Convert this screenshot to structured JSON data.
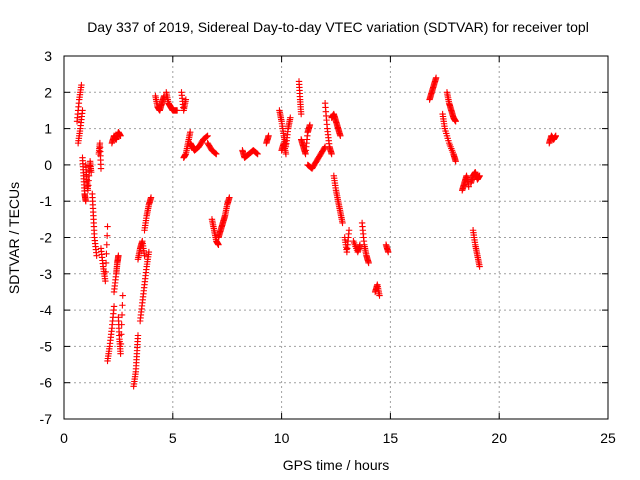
{
  "chart_data": {
    "type": "scatter",
    "title": "Day 337 of 2019, Sidereal Day-to-day VTEC variation (SDTVAR) for receiver topl",
    "xlabel": "GPS time / hours",
    "ylabel": "SDTVAR / TECUs",
    "xlim": [
      0,
      25
    ],
    "ylim": [
      -7,
      3
    ],
    "xticks": [
      0,
      5,
      10,
      15,
      20,
      25
    ],
    "yticks": [
      -7,
      -6,
      -5,
      -4,
      -3,
      -2,
      -1,
      0,
      1,
      2,
      3
    ],
    "xtick_labels": [
      "0",
      "5",
      "10",
      "15",
      "20",
      "25"
    ],
    "ytick_labels": [
      "-7",
      "-6",
      "-5",
      "-4",
      "-3",
      "-2",
      "-1",
      "0",
      "1",
      "2",
      "3"
    ],
    "grid": true,
    "marker": "+",
    "color": "#ff0000",
    "series": [
      {
        "name": "SDTVAR",
        "segments": [
          {
            "x": [
              0.6,
              0.7,
              0.8
            ],
            "y": [
              1.2,
              1.8,
              2.2
            ]
          },
          {
            "x": [
              0.65,
              0.75,
              0.85
            ],
            "y": [
              0.6,
              1.0,
              1.5
            ]
          },
          {
            "x": [
              0.85,
              0.9,
              0.95,
              1.0
            ],
            "y": [
              0.2,
              -0.3,
              -0.8,
              -1.0
            ]
          },
          {
            "x": [
              1.0,
              1.05,
              1.1,
              1.2,
              1.25
            ],
            "y": [
              0.0,
              -0.4,
              -0.7,
              0.1,
              -0.2
            ]
          },
          {
            "x": [
              1.3,
              1.35,
              1.4,
              1.5
            ],
            "y": [
              -0.8,
              -1.4,
              -2.0,
              -2.5
            ]
          },
          {
            "x": [
              1.6,
              1.65,
              1.7
            ],
            "y": [
              0.3,
              0.6,
              -0.1
            ]
          },
          {
            "x": [
              1.7,
              1.8,
              1.9,
              2.0
            ],
            "y": [
              -2.3,
              -2.8,
              -3.2,
              -1.7
            ]
          },
          {
            "x": [
              2.0,
              2.1,
              2.2,
              2.3
            ],
            "y": [
              -5.4,
              -5.0,
              -4.5,
              -3.9
            ]
          },
          {
            "x": [
              2.2,
              2.3,
              2.4,
              2.5,
              2.6
            ],
            "y": [
              0.6,
              0.8,
              0.7,
              0.9,
              0.8
            ]
          },
          {
            "x": [
              2.3,
              2.4,
              2.45,
              2.5
            ],
            "y": [
              -3.5,
              -3.0,
              -2.7,
              -2.5
            ]
          },
          {
            "x": [
              2.5,
              2.55,
              2.6,
              2.7
            ],
            "y": [
              -4.2,
              -4.8,
              -5.2,
              -3.6
            ]
          },
          {
            "x": [
              3.2,
              3.3,
              3.35,
              3.4
            ],
            "y": [
              -6.1,
              -5.7,
              -5.2,
              -4.7
            ]
          },
          {
            "x": [
              3.4,
              3.5,
              3.6,
              3.7
            ],
            "y": [
              -2.6,
              -2.3,
              -2.1,
              -2.5
            ]
          },
          {
            "x": [
              3.5,
              3.6,
              3.7,
              3.8,
              3.9
            ],
            "y": [
              -4.3,
              -3.8,
              -3.3,
              -2.8,
              -2.4
            ]
          },
          {
            "x": [
              3.7,
              3.8,
              3.9,
              4.0
            ],
            "y": [
              -1.8,
              -1.4,
              -1.1,
              -0.9
            ]
          },
          {
            "x": [
              4.2,
              4.3,
              4.4,
              4.5,
              4.6
            ],
            "y": [
              1.9,
              1.6,
              1.5,
              1.7,
              1.9
            ]
          },
          {
            "x": [
              4.7,
              4.8,
              4.9,
              5.0,
              5.2
            ],
            "y": [
              2.0,
              1.7,
              1.6,
              1.5,
              1.5
            ]
          },
          {
            "x": [
              5.4,
              5.5,
              5.6
            ],
            "y": [
              2.0,
              1.5,
              1.8
            ]
          },
          {
            "x": [
              5.5,
              5.6,
              5.7,
              5.8
            ],
            "y": [
              0.2,
              0.3,
              0.6,
              0.9
            ]
          },
          {
            "x": [
              5.8,
              5.9,
              6.0,
              6.2,
              6.4,
              6.6
            ],
            "y": [
              0.6,
              0.5,
              0.4,
              0.5,
              0.7,
              0.8
            ]
          },
          {
            "x": [
              6.6,
              6.8,
              7.0
            ],
            "y": [
              0.6,
              0.4,
              0.3
            ]
          },
          {
            "x": [
              6.8,
              6.9,
              7.0,
              7.1
            ],
            "y": [
              -1.5,
              -1.8,
              -2.1,
              -2.2
            ]
          },
          {
            "x": [
              7.1,
              7.2,
              7.3,
              7.4,
              7.5,
              7.6
            ],
            "y": [
              -2.0,
              -1.8,
              -1.6,
              -1.4,
              -1.1,
              -0.9
            ]
          },
          {
            "x": [
              8.2,
              8.3,
              8.5,
              8.7,
              8.9
            ],
            "y": [
              0.4,
              0.2,
              0.3,
              0.4,
              0.3
            ]
          },
          {
            "x": [
              9.3,
              9.4
            ],
            "y": [
              0.6,
              0.8
            ]
          },
          {
            "x": [
              9.9,
              10.0,
              10.1,
              10.2,
              10.3,
              10.4
            ],
            "y": [
              1.5,
              1.2,
              0.8,
              0.5,
              1.0,
              1.3
            ]
          },
          {
            "x": [
              10.0,
              10.1,
              10.2
            ],
            "y": [
              0.4,
              0.6,
              0.3
            ]
          },
          {
            "x": [
              10.8,
              10.85,
              10.9
            ],
            "y": [
              2.3,
              1.8,
              1.4
            ]
          },
          {
            "x": [
              10.9,
              11.0,
              11.1,
              11.2,
              11.3
            ],
            "y": [
              0.7,
              0.5,
              0.3,
              0.9,
              1.1
            ]
          },
          {
            "x": [
              11.2,
              11.4,
              11.6,
              11.8,
              12.0
            ],
            "y": [
              0.0,
              -0.1,
              0.1,
              0.3,
              0.5
            ]
          },
          {
            "x": [
              12.0,
              12.1,
              12.2,
              12.3
            ],
            "y": [
              1.7,
              1.0,
              0.5,
              0.3
            ]
          },
          {
            "x": [
              12.3,
              12.4,
              12.5,
              12.6,
              12.7
            ],
            "y": [
              1.3,
              1.4,
              1.2,
              1.0,
              0.8
            ]
          },
          {
            "x": [
              12.4,
              12.5,
              12.6,
              12.7,
              12.8
            ],
            "y": [
              -0.3,
              -0.7,
              -1.0,
              -1.3,
              -1.6
            ]
          },
          {
            "x": [
              12.9,
              13.0,
              13.1
            ],
            "y": [
              -2.0,
              -2.4,
              -1.8
            ]
          },
          {
            "x": [
              13.3,
              13.5,
              13.6
            ],
            "y": [
              -2.1,
              -2.4,
              -2.2
            ]
          },
          {
            "x": [
              13.7,
              13.8,
              13.9,
              14.0
            ],
            "y": [
              -1.6,
              -2.2,
              -2.5,
              -2.7
            ]
          },
          {
            "x": [
              14.3,
              14.4,
              14.5
            ],
            "y": [
              -3.5,
              -3.3,
              -3.6
            ]
          },
          {
            "x": [
              14.8,
              14.9
            ],
            "y": [
              -2.2,
              -2.4
            ]
          },
          {
            "x": [
              16.8,
              16.9,
              17.0,
              17.1
            ],
            "y": [
              1.8,
              2.0,
              2.2,
              2.4
            ]
          },
          {
            "x": [
              17.4,
              17.5,
              17.7,
              17.9,
              18.0
            ],
            "y": [
              1.4,
              1.0,
              0.6,
              0.3,
              0.1
            ]
          },
          {
            "x": [
              17.6,
              17.7,
              17.8,
              17.9,
              18.0
            ],
            "y": [
              2.0,
              1.7,
              1.5,
              1.3,
              1.2
            ]
          },
          {
            "x": [
              18.3,
              18.4,
              18.5,
              18.6
            ],
            "y": [
              -0.7,
              -0.5,
              -0.3,
              -0.6
            ]
          },
          {
            "x": [
              18.7,
              18.8,
              18.9,
              19.0,
              19.1
            ],
            "y": [
              -0.5,
              -0.3,
              -0.2,
              -0.4,
              -0.3
            ]
          },
          {
            "x": [
              18.8,
              18.9,
              19.0,
              19.1
            ],
            "y": [
              -1.8,
              -2.2,
              -2.5,
              -2.8
            ]
          },
          {
            "x": [
              22.3,
              22.4,
              22.5,
              22.6
            ],
            "y": [
              0.6,
              0.8,
              0.7,
              0.8
            ]
          }
        ]
      }
    ]
  }
}
